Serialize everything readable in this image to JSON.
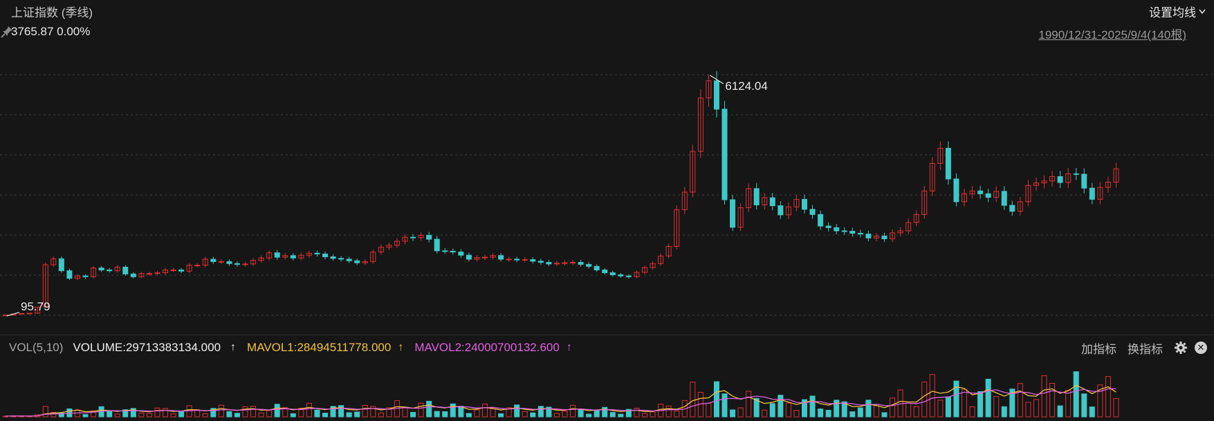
{
  "header": {
    "title": "上证指数 (季线)",
    "price_change": "3765.87 0.00%",
    "set_ma_label": "设置均线",
    "range_label": "1990/12/31-2025/9/4(140根)"
  },
  "volume_legend": {
    "name": "VOL(5,10)",
    "volume": "VOLUME:29713383134.000",
    "mavol1": "MAVOL1:28494511778.000",
    "mavol2": "MAVOL2:24000700132.600",
    "arrow": "↑"
  },
  "tools": {
    "add_indicator": "加指标",
    "switch_indicator": "换指标"
  },
  "colors": {
    "up": "#e03030",
    "down": "#3ec8c8",
    "grid": "#3a3a3a",
    "mavol1": "#f0c040",
    "mavol2": "#e060e0"
  },
  "chart_data": {
    "type": "candlestick",
    "title": "上证指数 (季线)",
    "period": "1990/12/31-2025/9/4",
    "candles_count": 140,
    "annotations": [
      {
        "label": "6124.04",
        "kind": "max_high",
        "value": 6124.04
      },
      {
        "label": "95.79",
        "kind": "min_low",
        "value": 95.79
      }
    ],
    "last_close": 3765.87,
    "grid": true,
    "price_series_close_approx": [
      100,
      127,
      140,
      147,
      300,
      1360,
      1510,
      1210,
      1020,
      1080,
      1060,
      1280,
      1230,
      1210,
      1300,
      1130,
      1060,
      1140,
      1140,
      1160,
      1230,
      1230,
      1200,
      1350,
      1350,
      1500,
      1440,
      1440,
      1390,
      1370,
      1380,
      1470,
      1530,
      1660,
      1550,
      1590,
      1530,
      1600,
      1650,
      1630,
      1560,
      1520,
      1500,
      1460,
      1410,
      1440,
      1680,
      1800,
      1850,
      1950,
      2050,
      2040,
      2100,
      2000,
      1710,
      1700,
      1680,
      1600,
      1500,
      1540,
      1550,
      1590,
      1500,
      1500,
      1480,
      1490,
      1450,
      1420,
      1380,
      1400,
      1410,
      1420,
      1370,
      1320,
      1230,
      1160,
      1110,
      1080,
      1060,
      1170,
      1290,
      1390,
      1580,
      1820,
      2740,
      3180,
      4200,
      5540,
      5970,
      5260,
      2990,
      2300,
      2790,
      3270,
      2860,
      3040,
      2840,
      2610,
      2810,
      3000,
      2750,
      2620,
      2330,
      2290,
      2210,
      2200,
      2150,
      2130,
      2030,
      2080,
      2010,
      2160,
      2210,
      2420,
      2620,
      3210,
      3900,
      4280,
      3510,
      2940,
      3140,
      3210,
      3140,
      3050,
      3200,
      2850,
      2700,
      2940,
      3350,
      3410,
      3460,
      3570,
      3420,
      3640,
      3630,
      3280,
      3000,
      3300,
      3430,
      3765.87
    ],
    "volume_unit": "shares",
    "last_volume": 29713383134.0,
    "mavol1": 28494511778.0,
    "mavol2": 24000700132.6
  }
}
